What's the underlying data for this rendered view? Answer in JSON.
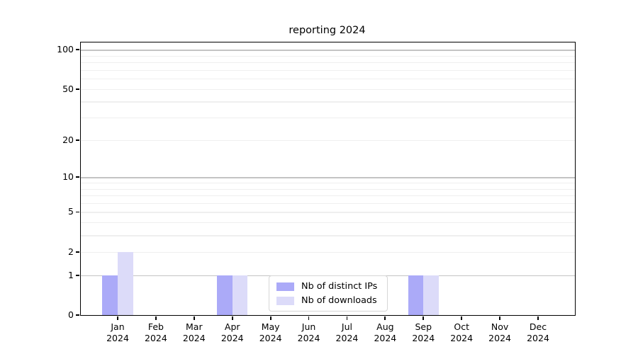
{
  "chart_data": {
    "type": "bar",
    "title": "reporting 2024",
    "categories": [
      "Jan",
      "Feb",
      "Mar",
      "Apr",
      "May",
      "Jun",
      "Jul",
      "Aug",
      "Sep",
      "Oct",
      "Nov",
      "Dec"
    ],
    "category_year": "2024",
    "series": [
      {
        "name": "Nb of distinct IPs",
        "color": "#abaaf8",
        "values": [
          1,
          0,
          0,
          1,
          0,
          0,
          0,
          0,
          1,
          0,
          0,
          0
        ]
      },
      {
        "name": "Nb of downloads",
        "color": "#dcdbf9",
        "values": [
          2,
          0,
          0,
          1,
          0,
          0,
          0,
          0,
          1,
          0,
          0,
          0
        ]
      }
    ],
    "yscale": "log10(1+x)",
    "ytick_values": [
      0,
      1,
      2,
      5,
      10,
      20,
      50,
      100
    ],
    "major_grid_values": [
      1,
      10,
      100
    ],
    "minor_grid_values": [
      2,
      3,
      4,
      5,
      6,
      7,
      8,
      9,
      20,
      30,
      40,
      50,
      60,
      70,
      80,
      90
    ],
    "ylim": [
      0,
      119
    ],
    "grid": "on",
    "legend_position": "bottom-center-inside",
    "colors": {
      "major_grid": "#c4c4c4",
      "minor_grid": "#efefef",
      "axis_spine": "#000000",
      "background": "#ffffff"
    }
  }
}
